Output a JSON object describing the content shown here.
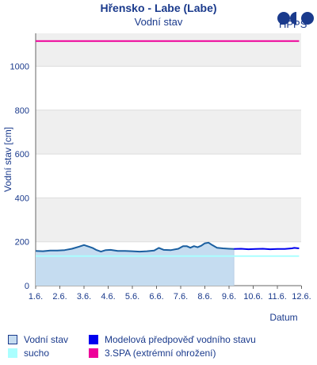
{
  "header": {
    "title": "Hřensko - Labe (Labe)",
    "subtitle": "Vodní stav",
    "logo_text": "HPPS"
  },
  "legend": {
    "items": [
      {
        "label": "Vodní stav",
        "color": "#c5dcf0",
        "border": "#1a3a8c"
      },
      {
        "label": "Modelová předpověď vodního stavu",
        "color": "#0000ee"
      },
      {
        "label": "sucho",
        "color": "#aaffff"
      },
      {
        "label": "3.SPA (extrémní ohrožení)",
        "color": "#ee0099"
      }
    ]
  },
  "chart_data": {
    "type": "line",
    "title": "Vodní stav",
    "xlabel": "Datum",
    "ylabel": "Vodní stav [cm]",
    "x_ticks": [
      "1.6.",
      "2.6.",
      "3.6.",
      "4.6.",
      "5.6.",
      "6.6.",
      "7.6.",
      "8.6.",
      "9.6.",
      "10.6.",
      "11.6.",
      "12.6."
    ],
    "xlim_days": [
      1,
      12
    ],
    "ylim": [
      0,
      1150
    ],
    "y_ticks": [
      0,
      200,
      400,
      600,
      800,
      1000
    ],
    "grid": true,
    "legend_position": "bottom",
    "series": [
      {
        "name": "Vodní stav",
        "color": "#1a5fa0",
        "fill": "#c5dcf0",
        "points": [
          [
            1.0,
            158
          ],
          [
            1.3,
            157
          ],
          [
            1.6,
            160
          ],
          [
            1.9,
            160
          ],
          [
            2.2,
            162
          ],
          [
            2.5,
            168
          ],
          [
            2.8,
            178
          ],
          [
            3.0,
            185
          ],
          [
            3.2,
            178
          ],
          [
            3.35,
            172
          ],
          [
            3.5,
            163
          ],
          [
            3.7,
            155
          ],
          [
            3.9,
            162
          ],
          [
            4.1,
            163
          ],
          [
            4.4,
            158
          ],
          [
            4.7,
            158
          ],
          [
            5.0,
            157
          ],
          [
            5.3,
            155
          ],
          [
            5.6,
            157
          ],
          [
            5.9,
            160
          ],
          [
            6.1,
            172
          ],
          [
            6.3,
            163
          ],
          [
            6.6,
            162
          ],
          [
            6.9,
            168
          ],
          [
            7.1,
            180
          ],
          [
            7.25,
            180
          ],
          [
            7.4,
            173
          ],
          [
            7.55,
            180
          ],
          [
            7.7,
            175
          ],
          [
            7.85,
            182
          ],
          [
            8.0,
            193
          ],
          [
            8.15,
            196
          ],
          [
            8.3,
            185
          ],
          [
            8.5,
            173
          ],
          [
            8.75,
            170
          ],
          [
            9.0,
            168
          ],
          [
            9.2,
            167
          ]
        ]
      },
      {
        "name": "Modelová předpověď vodního stavu",
        "color": "#0000ee",
        "points": [
          [
            9.2,
            167
          ],
          [
            9.5,
            168
          ],
          [
            9.8,
            166
          ],
          [
            10.1,
            167
          ],
          [
            10.4,
            168
          ],
          [
            10.7,
            166
          ],
          [
            11.0,
            167
          ],
          [
            11.3,
            167
          ],
          [
            11.6,
            170
          ],
          [
            11.7,
            172
          ],
          [
            11.9,
            170
          ]
        ]
      },
      {
        "name": "sucho",
        "color": "#aaffff",
        "points": [
          [
            1.0,
            135
          ],
          [
            11.9,
            135
          ]
        ]
      },
      {
        "name": "3.SPA (extrémní ohrožení)",
        "color": "#ee0099",
        "points": [
          [
            1.0,
            1115
          ],
          [
            11.9,
            1115
          ]
        ]
      }
    ]
  }
}
